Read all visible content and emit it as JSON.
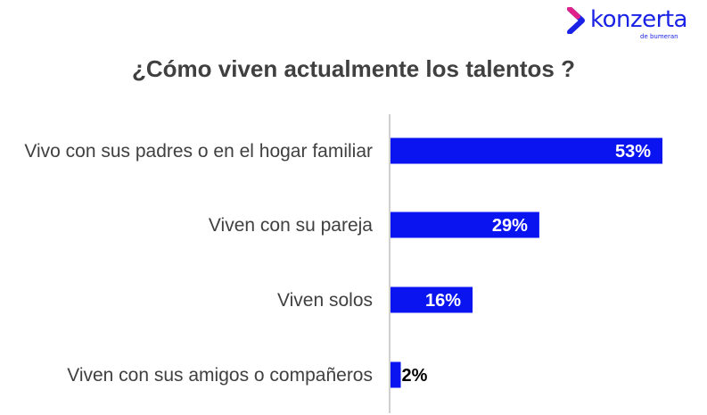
{
  "logo": {
    "name": "konzerta",
    "tagline": "de bumeran",
    "icon": "chevron-right-icon",
    "colors": {
      "primary": "#1a22e6",
      "accent": "#e0218a"
    }
  },
  "chart_data": {
    "type": "bar",
    "orientation": "horizontal",
    "title": "¿Cómo viven actualmente los talentos ?",
    "categories": [
      "Vivo con sus padres o en el hogar familiar",
      "Viven con su pareja",
      "Viven solos",
      "Viven con sus amigos o compañeros"
    ],
    "values": [
      53,
      29,
      16,
      2
    ],
    "value_labels": [
      "53%",
      "29%",
      "16%",
      "2%"
    ],
    "unit": "%",
    "bar_color": "#0a14f0",
    "axis_color": "#bfbfbf",
    "grid": false,
    "legend": "none"
  }
}
